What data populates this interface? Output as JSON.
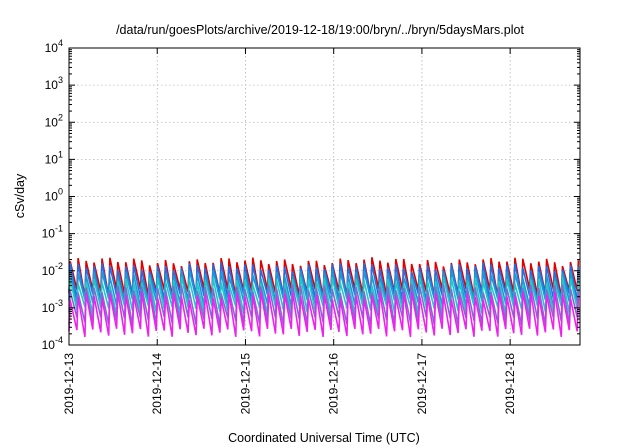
{
  "chart_data": {
    "type": "line",
    "title": "/data/run/goesPlots/archive/2019-12-18/19:00/bryn/../bryn/5daysMars.plot",
    "xlabel": "Coordinated Universal Time (UTC)",
    "ylabel": "cSv/day",
    "xlim": [
      "2019-12-13T00:00",
      "2019-12-18T19:00"
    ],
    "ylim": [
      0.0001,
      10000
    ],
    "yscale": "log",
    "grid": true,
    "legend": "none",
    "x_tick_labels": [
      "2019-12-13",
      "2019-12-14",
      "2019-12-15",
      "2019-12-16",
      "2019-12-17",
      "2019-12-18"
    ],
    "y_tick_labels": [
      {
        "base": "10",
        "exp": "-4"
      },
      {
        "base": "10",
        "exp": "-3"
      },
      {
        "base": "10",
        "exp": "-2"
      },
      {
        "base": "10",
        "exp": "-1"
      },
      {
        "base": "10",
        "exp": "0"
      },
      {
        "base": "10",
        "exp": "1"
      },
      {
        "base": "10",
        "exp": "2"
      },
      {
        "base": "10",
        "exp": "3"
      },
      {
        "base": "10",
        "exp": "4"
      }
    ],
    "sawtooth_period_hours": 2.16,
    "series": [
      {
        "color": "#e00000",
        "peak": 0.018,
        "trough": 0.0026
      },
      {
        "color": "#1f6fe8",
        "peak": 0.013,
        "trough": 0.0019
      },
      {
        "color": "#1a9ad6",
        "peak": 0.0085,
        "trough": 0.0014
      },
      {
        "color": "#22c7c7",
        "peak": 0.0055,
        "trough": 0.0009
      },
      {
        "color": "#7a6fd0",
        "peak": 0.0034,
        "trough": 0.00045
      },
      {
        "color": "#ee22ee",
        "peak": 0.0022,
        "trough": 0.00022
      }
    ]
  }
}
